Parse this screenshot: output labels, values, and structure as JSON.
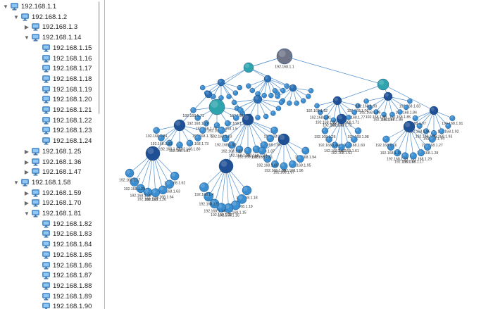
{
  "tree": {
    "items": [
      {
        "label": "192.168.1.1",
        "depth": 0,
        "expanded": true
      },
      {
        "label": "192.168.1.2",
        "depth": 1,
        "expanded": true
      },
      {
        "label": "192.168.1.3",
        "depth": 2,
        "expanded": false
      },
      {
        "label": "192.168.1.14",
        "depth": 2,
        "expanded": true
      },
      {
        "label": "192.168.1.15",
        "depth": 3
      },
      {
        "label": "192.168.1.16",
        "depth": 3
      },
      {
        "label": "192.168.1.17",
        "depth": 3
      },
      {
        "label": "192.168.1.18",
        "depth": 3
      },
      {
        "label": "192.168.1.19",
        "depth": 3
      },
      {
        "label": "192.168.1.20",
        "depth": 3
      },
      {
        "label": "192.168.1.21",
        "depth": 3
      },
      {
        "label": "192.168.1.22",
        "depth": 3
      },
      {
        "label": "192.168.1.23",
        "depth": 3
      },
      {
        "label": "192.168.1.24",
        "depth": 3
      },
      {
        "label": "192.168.1.25",
        "depth": 2,
        "expanded": false
      },
      {
        "label": "192.168.1.36",
        "depth": 2,
        "expanded": false
      },
      {
        "label": "192.168.1.47",
        "depth": 2,
        "expanded": false
      },
      {
        "label": "192.168.1.58",
        "depth": 1,
        "expanded": true
      },
      {
        "label": "192.168.1.59",
        "depth": 2,
        "expanded": false
      },
      {
        "label": "192.168.1.70",
        "depth": 2,
        "expanded": false
      },
      {
        "label": "192.168.1.81",
        "depth": 2,
        "expanded": true
      },
      {
        "label": "192.168.1.82",
        "depth": 3
      },
      {
        "label": "192.168.1.83",
        "depth": 3
      },
      {
        "label": "192.168.1.84",
        "depth": 3
      },
      {
        "label": "192.168.1.85",
        "depth": 3
      },
      {
        "label": "192.168.1.86",
        "depth": 3
      },
      {
        "label": "192.168.1.87",
        "depth": 3
      },
      {
        "label": "192.168.1.88",
        "depth": 3
      },
      {
        "label": "192.168.1.89",
        "depth": 3
      },
      {
        "label": "192.168.1.90",
        "depth": 3
      }
    ]
  },
  "graph": {
    "root": "192.168.1.1",
    "visible_labels": {
      "root": "192.168.1.1",
      "ext": [
        "192.168.1.76",
        "192.168.1.77",
        "192.168.1.71",
        "192.168.1.72",
        "192.168.1.73",
        "192.168.1.80",
        "192.168.1.81",
        "192.168.1.82",
        "192.168.1.83",
        "192.168.1.84",
        "192.168.1.85",
        "192.168.1.86",
        "192.168.1.87",
        "192.168.1.88",
        "192.168.1.89",
        "192.168.1.90",
        "192.168.1.91",
        "192.168.1.92",
        "192.168.1.93",
        "192.168.1.94",
        "192.168.1.95",
        "192.168.1.96",
        "192.168.1.97",
        "192.168.1.98",
        "192.168.1.60",
        "192.168.1.61",
        "192.168.1.62",
        "192.168.1.63",
        "192.168.1.64",
        "192.168.1.26",
        "192.168.1.27",
        "192.168.1.28",
        "192.168.1.29",
        "192.168.1.17",
        "192.168.1.18",
        "192.168.1.19",
        "192.168.1.15",
        "192.168.1.16",
        "192.168.1.13",
        "192.168.1.14",
        "192.168.1.5",
        "192.168.1.4"
      ]
    }
  },
  "colors": {
    "node_light": "#3b8ed0",
    "node_mid": "#2a6fb3",
    "node_dark": "#1f4f94",
    "node_teal": "#2ea5ad",
    "node_root": "#6f7487",
    "edge": "#4f8fcf",
    "tree_icon": "#3d87d0"
  },
  "icons": {
    "expanded": "triangle-down-icon",
    "collapsed": "triangle-right-icon",
    "host": "monitor-icon"
  }
}
